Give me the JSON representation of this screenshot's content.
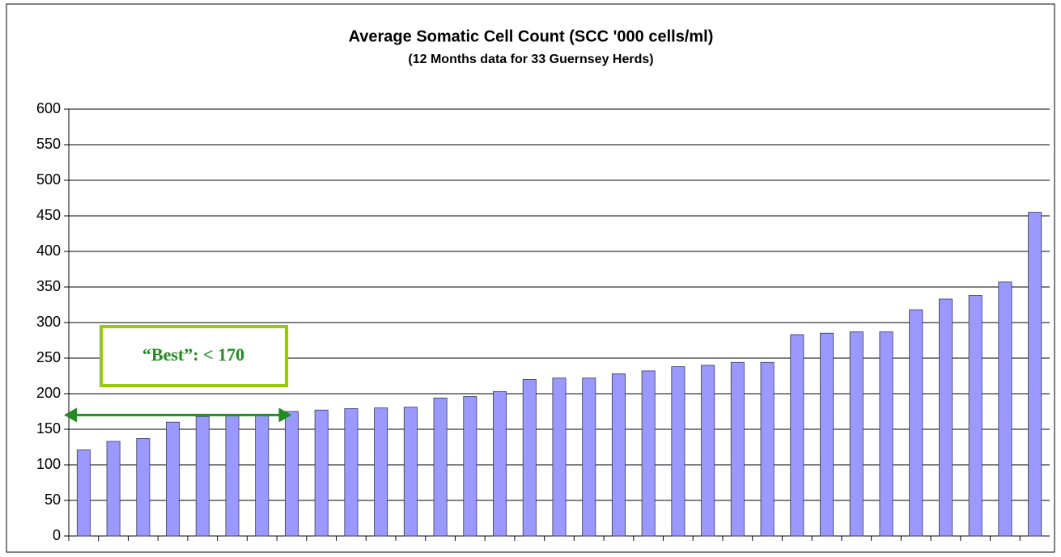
{
  "chart_data": {
    "type": "bar",
    "title": "Average Somatic Cell Count (SCC '000 cells/ml)",
    "subtitle": "(12 Months data for 33 Guernsey Herds)",
    "categories": [
      null,
      null,
      null,
      null,
      null,
      null,
      null,
      null,
      null,
      null,
      null,
      null,
      null,
      null,
      null,
      null,
      null,
      null,
      null,
      null,
      null,
      null,
      null,
      null,
      null,
      null,
      null,
      null,
      null,
      null,
      null,
      null,
      null
    ],
    "values": [
      121,
      133,
      137,
      160,
      168,
      169,
      171,
      175,
      177,
      179,
      180,
      181,
      194,
      196,
      203,
      220,
      222,
      222,
      228,
      232,
      238,
      240,
      244,
      244,
      283,
      285,
      287,
      287,
      318,
      333,
      338,
      357,
      455
    ],
    "color": "#9999ff",
    "ylim": [
      0,
      600
    ],
    "yticks": [
      0,
      50,
      100,
      150,
      200,
      250,
      300,
      350,
      400,
      450,
      500,
      550,
      600
    ],
    "grid": true,
    "annotation": {
      "text": "“Best”:  < 170",
      "value": 170,
      "color": "#228b22"
    }
  }
}
